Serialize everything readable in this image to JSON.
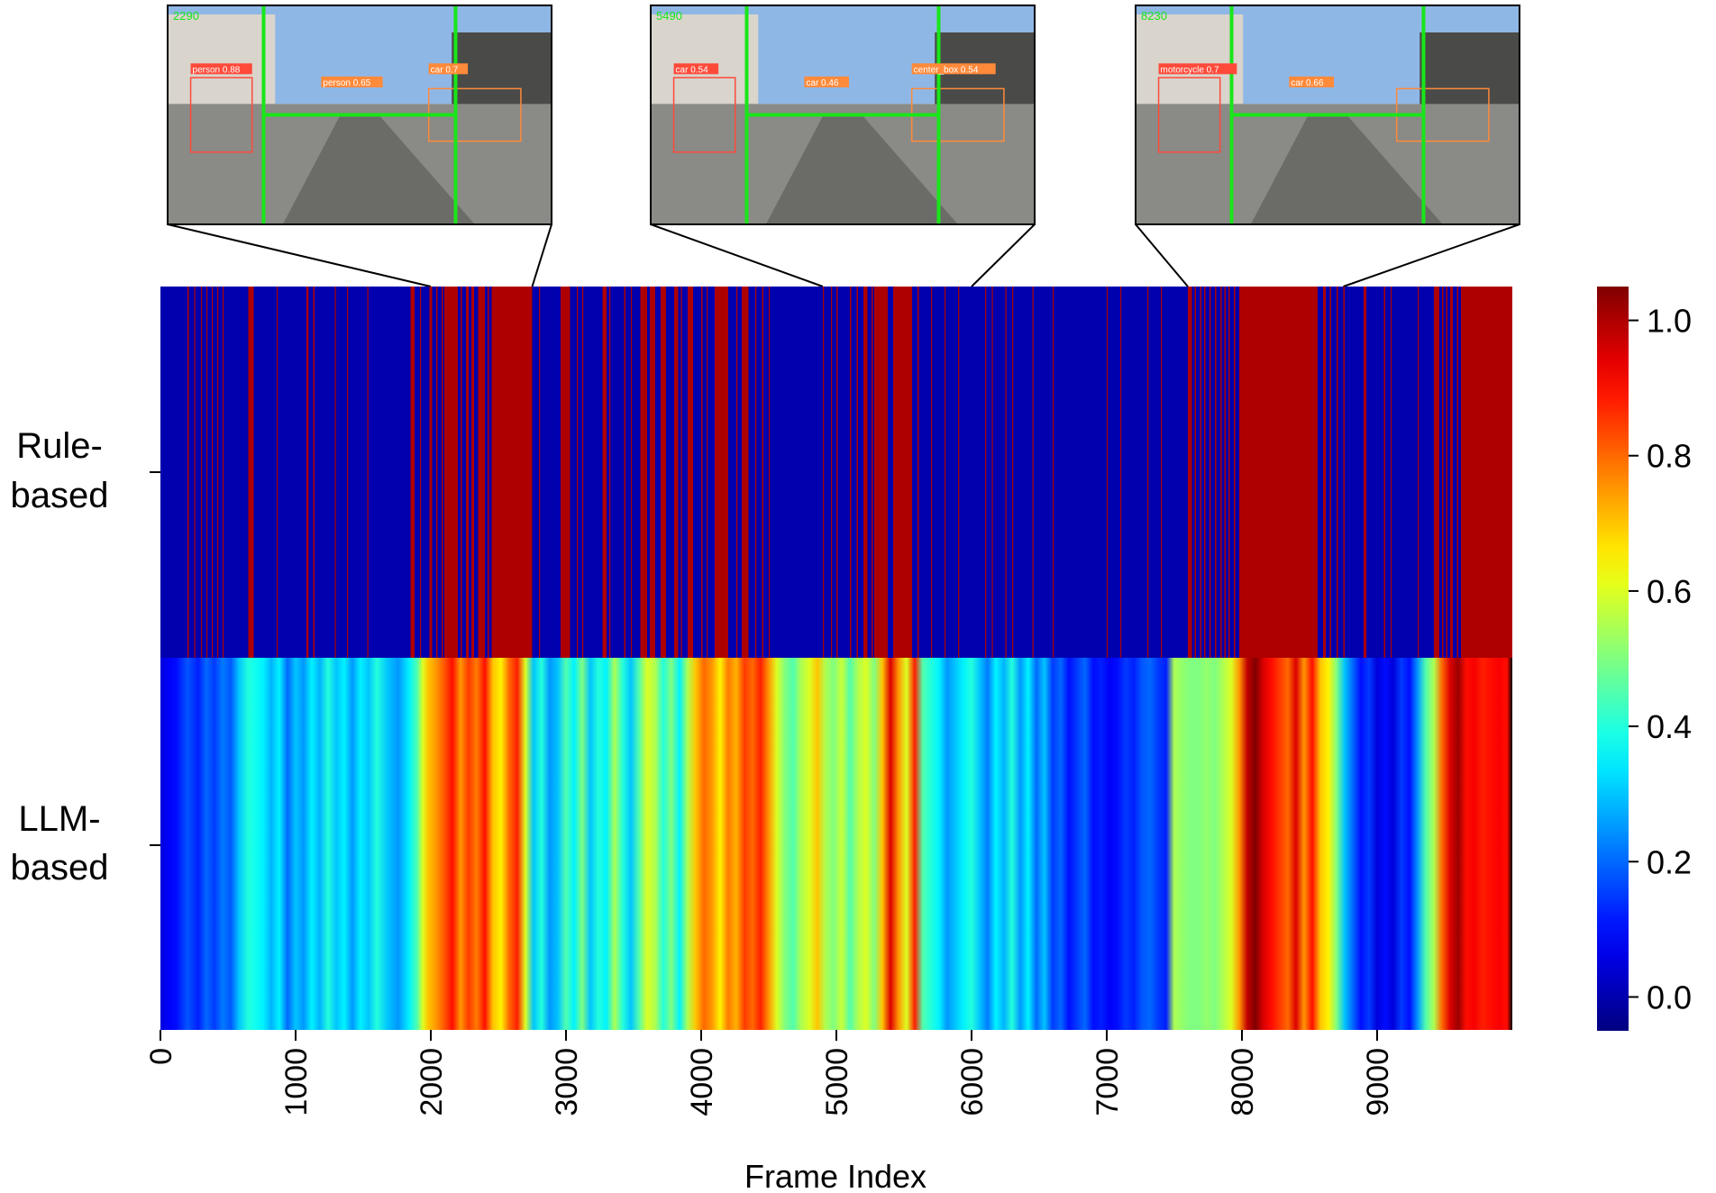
{
  "chart_data": {
    "type": "heatmap",
    "xlabel": "Frame Index",
    "ylabel": "",
    "x_range": [
      0,
      10000
    ],
    "x_ticks": [
      0,
      1000,
      2000,
      3000,
      4000,
      5000,
      6000,
      7000,
      8000,
      9000
    ],
    "rows": [
      "Rule-based",
      "LLM-based"
    ],
    "colormap": "jet",
    "colorbar": {
      "range": [
        -0.05,
        1.05
      ],
      "ticks": [
        0.0,
        0.2,
        0.4,
        0.6,
        0.8,
        1.0
      ],
      "tick_labels": [
        "0.0",
        "0.2",
        "0.4",
        "0.6",
        "0.8",
        "1.0"
      ]
    },
    "rule_based": {
      "description_values": "binary 0/1 per frame",
      "segments_value_1": [
        [
          200,
          210
        ],
        [
          250,
          258
        ],
        [
          300,
          306
        ],
        [
          340,
          348
        ],
        [
          380,
          388
        ],
        [
          420,
          428
        ],
        [
          460,
          466
        ],
        [
          650,
          690
        ],
        [
          860,
          868
        ],
        [
          1080,
          1095
        ],
        [
          1130,
          1140
        ],
        [
          1290,
          1298
        ],
        [
          1380,
          1388
        ],
        [
          1530,
          1538
        ],
        [
          1850,
          1880
        ],
        [
          1920,
          1928
        ],
        [
          1990,
          2010
        ],
        [
          2040,
          2050
        ],
        [
          2080,
          2090
        ],
        [
          2100,
          2200
        ],
        [
          2220,
          2230
        ],
        [
          2260,
          2280
        ],
        [
          2300,
          2320
        ],
        [
          2350,
          2400
        ],
        [
          2420,
          2430
        ],
        [
          2450,
          2750
        ],
        [
          2800,
          2808
        ],
        [
          2960,
          3030
        ],
        [
          3080,
          3088
        ],
        [
          3120,
          3128
        ],
        [
          3270,
          3300
        ],
        [
          3320,
          3328
        ],
        [
          3430,
          3440
        ],
        [
          3480,
          3488
        ],
        [
          3550,
          3600
        ],
        [
          3620,
          3660
        ],
        [
          3700,
          3740
        ],
        [
          3800,
          3830
        ],
        [
          3850,
          3858
        ],
        [
          3900,
          3940
        ],
        [
          4000,
          4010
        ],
        [
          4040,
          4048
        ],
        [
          4100,
          4200
        ],
        [
          4260,
          4268
        ],
        [
          4300,
          4350
        ],
        [
          4400,
          4408
        ],
        [
          4450,
          4460
        ],
        [
          4500,
          4508
        ],
        [
          4900,
          4908
        ],
        [
          4960,
          4968
        ],
        [
          5000,
          5010
        ],
        [
          5100,
          5110
        ],
        [
          5150,
          5160
        ],
        [
          5200,
          5230
        ],
        [
          5260,
          5270
        ],
        [
          5280,
          5380
        ],
        [
          5420,
          5560
        ],
        [
          5600,
          5610
        ],
        [
          5700,
          5706
        ],
        [
          5800,
          5808
        ],
        [
          5900,
          5906
        ],
        [
          6100,
          6108
        ],
        [
          6150,
          6158
        ],
        [
          6250,
          6258
        ],
        [
          6300,
          6308
        ],
        [
          6450,
          6458
        ],
        [
          6600,
          6608
        ],
        [
          7000,
          7008
        ],
        [
          7100,
          7108
        ],
        [
          7300,
          7308
        ],
        [
          7400,
          7408
        ],
        [
          7600,
          7630
        ],
        [
          7650,
          7660
        ],
        [
          7690,
          7700
        ],
        [
          7720,
          7730
        ],
        [
          7760,
          7770
        ],
        [
          7800,
          7810
        ],
        [
          7840,
          7850
        ],
        [
          7870,
          7880
        ],
        [
          7900,
          7910
        ],
        [
          7940,
          7950
        ],
        [
          7980,
          8560
        ],
        [
          8600,
          8620
        ],
        [
          8650,
          8660
        ],
        [
          8700,
          8710
        ],
        [
          8750,
          8760
        ],
        [
          8900,
          8920
        ],
        [
          9050,
          9060
        ],
        [
          9100,
          9108
        ],
        [
          9300,
          9308
        ],
        [
          9420,
          9460
        ],
        [
          9480,
          9490
        ],
        [
          9510,
          9520
        ],
        [
          9540,
          9560
        ],
        [
          9590,
          9600
        ],
        [
          9620,
          10000
        ]
      ]
    },
    "llm_based": {
      "description_values": "continuous 0-1 score per frame",
      "x": [
        0,
        60,
        120,
        200,
        280,
        340,
        400,
        460,
        520,
        580,
        650,
        700,
        760,
        820,
        880,
        940,
        1000,
        1060,
        1120,
        1180,
        1240,
        1300,
        1360,
        1420,
        1480,
        1540,
        1600,
        1680,
        1760,
        1840,
        1900,
        1940,
        1980,
        2040,
        2100,
        2160,
        2220,
        2280,
        2340,
        2400,
        2460,
        2520,
        2580,
        2640,
        2700,
        2760,
        2820,
        2880,
        2940,
        3000,
        3060,
        3120,
        3180,
        3240,
        3300,
        3360,
        3420,
        3480,
        3540,
        3600,
        3660,
        3720,
        3780,
        3840,
        3900,
        3960,
        4020,
        4080,
        4140,
        4200,
        4260,
        4320,
        4380,
        4440,
        4500,
        4560,
        4620,
        4680,
        4740,
        4800,
        4860,
        4920,
        4980,
        5040,
        5100,
        5160,
        5220,
        5280,
        5340,
        5400,
        5460,
        5520,
        5580,
        5640,
        5700,
        5760,
        5820,
        5880,
        5940,
        6000,
        6060,
        6120,
        6180,
        6240,
        6300,
        6360,
        6420,
        6480,
        6540,
        6600,
        6660,
        6720,
        6780,
        6840,
        6900,
        6960,
        7020,
        7080,
        7140,
        7200,
        7260,
        7320,
        7380,
        7440,
        7500,
        7560,
        7620,
        7680,
        7740,
        7800,
        7860,
        7920,
        7980,
        8040,
        8100,
        8160,
        8220,
        8280,
        8340,
        8400,
        8460,
        8520,
        8580,
        8640,
        8700,
        8760,
        8820,
        8880,
        8940,
        9000,
        9060,
        9120,
        9180,
        9240,
        9300,
        9360,
        9420,
        9480,
        9540,
        9600,
        9660,
        9720,
        9780,
        9840,
        9900,
        9960,
        10000
      ],
      "values": [
        0.05,
        0.08,
        0.1,
        0.18,
        0.12,
        0.2,
        0.15,
        0.22,
        0.18,
        0.3,
        0.4,
        0.38,
        0.35,
        0.28,
        0.35,
        0.2,
        0.3,
        0.25,
        0.35,
        0.28,
        0.4,
        0.3,
        0.35,
        0.25,
        0.35,
        0.3,
        0.4,
        0.3,
        0.25,
        0.35,
        0.45,
        0.6,
        0.7,
        0.75,
        0.82,
        0.9,
        0.75,
        0.85,
        0.78,
        0.9,
        0.7,
        0.65,
        0.8,
        0.88,
        0.6,
        0.3,
        0.4,
        0.25,
        0.3,
        0.45,
        0.35,
        0.5,
        0.3,
        0.4,
        0.35,
        0.55,
        0.4,
        0.3,
        0.45,
        0.6,
        0.55,
        0.4,
        0.5,
        0.35,
        0.55,
        0.7,
        0.8,
        0.75,
        0.65,
        0.78,
        0.72,
        0.85,
        0.8,
        0.88,
        0.75,
        0.6,
        0.5,
        0.45,
        0.55,
        0.6,
        0.7,
        0.55,
        0.5,
        0.58,
        0.45,
        0.55,
        0.6,
        0.5,
        0.7,
        0.95,
        0.75,
        0.6,
        0.88,
        0.45,
        0.4,
        0.35,
        0.25,
        0.3,
        0.35,
        0.4,
        0.3,
        0.22,
        0.35,
        0.28,
        0.4,
        0.25,
        0.35,
        0.2,
        0.3,
        0.15,
        0.2,
        0.1,
        0.15,
        0.2,
        0.1,
        0.12,
        0.08,
        0.1,
        0.15,
        0.12,
        0.18,
        0.2,
        0.15,
        0.12,
        0.55,
        0.52,
        0.5,
        0.5,
        0.52,
        0.5,
        0.55,
        0.6,
        0.75,
        0.98,
        1.05,
        0.95,
        0.9,
        0.85,
        0.8,
        0.95,
        0.75,
        0.9,
        0.7,
        0.65,
        0.5,
        0.3,
        0.2,
        0.1,
        0.15,
        0.05,
        0.1,
        0.05,
        0.15,
        0.1,
        0.25,
        0.45,
        0.55,
        0.8,
        0.95,
        1.02,
        0.9,
        0.92,
        0.88,
        0.9,
        0.92,
        0.9
      ]
    },
    "insets": [
      {
        "frame_label": "2290",
        "detections": [
          "person 0.88",
          "person 0.65",
          "car 0.7"
        ],
        "connects_to": [
          2000,
          2750
        ]
      },
      {
        "frame_label": "5490",
        "detections": [
          "car 0.54",
          "car 0.46",
          "center_box 0.54"
        ],
        "connects_to": [
          4900,
          6000
        ]
      },
      {
        "frame_label": "8230",
        "detections": [
          "motorcycle 0.7",
          "car 0.66"
        ],
        "connects_to": [
          7600,
          8750
        ]
      }
    ]
  }
}
